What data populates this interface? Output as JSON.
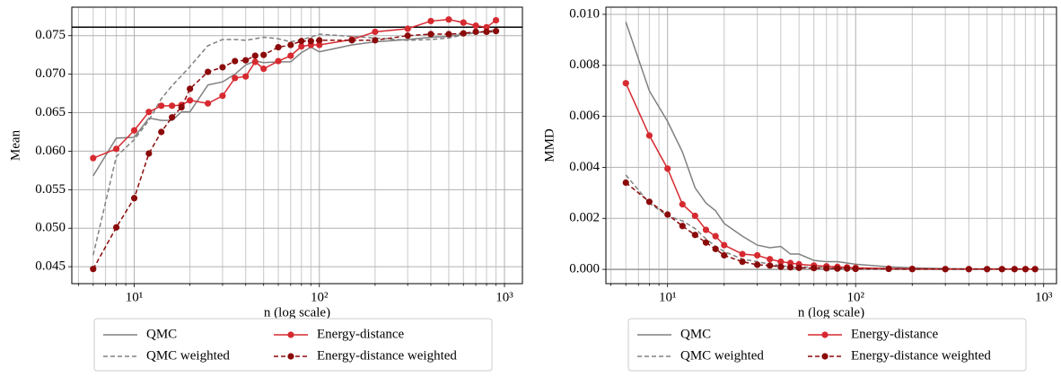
{
  "chart_data": [
    {
      "type": "line",
      "xlabel": "n (log scale)",
      "ylabel": "Mean",
      "xscale": "log",
      "grid": true,
      "legend": "below",
      "x": [
        6,
        8,
        10,
        12,
        14,
        16,
        18,
        20,
        25,
        30,
        35,
        40,
        45,
        50,
        60,
        70,
        80,
        90,
        100,
        150,
        200,
        300,
        400,
        500,
        600,
        700,
        800,
        900
      ],
      "xlim": [
        4.6,
        1250
      ],
      "xticks": [
        {
          "value": 10,
          "label": "10¹"
        },
        {
          "value": 100,
          "label": "10²"
        },
        {
          "value": 1000,
          "label": "10³"
        }
      ],
      "xminor": [
        5,
        6,
        7,
        8,
        9,
        20,
        30,
        40,
        50,
        60,
        70,
        80,
        90,
        200,
        300,
        400,
        500,
        600,
        700,
        800,
        900
      ],
      "ylim": [
        0.0428,
        0.0787
      ],
      "yticks": [
        0.045,
        {
          "value": 0.05,
          "label": "0.050"
        },
        0.055,
        {
          "value": 0.06,
          "label": "0.060"
        },
        0.065,
        {
          "value": 0.07,
          "label": "0.070"
        },
        0.075
      ],
      "hline": 0.0761,
      "hline_color": "#000000",
      "series": [
        {
          "name": "QMC",
          "color": "#808080",
          "linestyle": "solid",
          "marker": "none",
          "values": [
            0.0568,
            0.0617,
            0.0618,
            0.0643,
            0.064,
            0.064,
            0.0651,
            0.0651,
            0.0686,
            0.069,
            0.07,
            0.0712,
            0.0717,
            0.0715,
            0.0716,
            0.0716,
            0.0728,
            0.0735,
            0.0729,
            0.0738,
            0.0742,
            0.0745,
            0.0748,
            0.0749,
            0.0752,
            0.0754,
            0.0755,
            0.0755
          ]
        },
        {
          "name": "QMC weighted",
          "color": "#808080",
          "linestyle": "dashed",
          "marker": "none",
          "values": [
            0.0465,
            0.0593,
            0.0615,
            0.064,
            0.0668,
            0.0685,
            0.0698,
            0.071,
            0.0737,
            0.0745,
            0.0745,
            0.0744,
            0.0746,
            0.0748,
            0.0746,
            0.0742,
            0.0745,
            0.0748,
            0.0752,
            0.0749,
            0.0747,
            0.0744,
            0.0745,
            0.0747,
            0.0751,
            0.0754,
            0.0756,
            0.0757
          ]
        },
        {
          "name": "Energy-distance",
          "color": "#d62a30",
          "linestyle": "solid",
          "marker": "circle",
          "values": [
            0.0591,
            0.0603,
            0.0627,
            0.0651,
            0.0659,
            0.0659,
            0.066,
            0.0666,
            0.0662,
            0.0672,
            0.0695,
            0.0697,
            0.0716,
            0.0707,
            0.0717,
            0.0724,
            0.0736,
            0.0738,
            0.0738,
            0.0745,
            0.0755,
            0.0759,
            0.0769,
            0.0771,
            0.0767,
            0.0763,
            0.0761,
            0.077
          ]
        },
        {
          "name": "Energy-distance weighted",
          "color": "#8b0a0a",
          "linestyle": "dashed",
          "marker": "circle",
          "values": [
            0.0447,
            0.0501,
            0.0539,
            0.0597,
            0.0625,
            0.0644,
            0.0657,
            0.0681,
            0.0703,
            0.0709,
            0.0717,
            0.0718,
            0.0724,
            0.0725,
            0.0735,
            0.0738,
            0.0743,
            0.0743,
            0.0744,
            0.0744,
            0.0744,
            0.075,
            0.0752,
            0.0752,
            0.0753,
            0.0755,
            0.0755,
            0.0756
          ]
        }
      ]
    },
    {
      "type": "line",
      "xlabel": "n (log scale)",
      "ylabel": "MMD",
      "xscale": "log",
      "grid": true,
      "legend": "below",
      "x": [
        6,
        8,
        10,
        12,
        14,
        16,
        18,
        20,
        25,
        30,
        35,
        40,
        45,
        50,
        60,
        70,
        80,
        90,
        100,
        150,
        200,
        300,
        400,
        500,
        600,
        700,
        800,
        900
      ],
      "xlim": [
        4.7,
        1170
      ],
      "xticks": [
        {
          "value": 10,
          "label": "10¹"
        },
        {
          "value": 100,
          "label": "10²"
        },
        {
          "value": 1000,
          "label": "10³"
        }
      ],
      "xminor": [
        5,
        6,
        7,
        8,
        9,
        20,
        30,
        40,
        50,
        60,
        70,
        80,
        90,
        200,
        300,
        400,
        500,
        600,
        700,
        800,
        900
      ],
      "ylim": [
        -0.00056,
        0.01028
      ],
      "yticks": [
        {
          "value": 0,
          "label": "0.000"
        },
        0.002,
        0.004,
        0.006,
        0.008,
        {
          "value": 0.01,
          "label": "0.010"
        }
      ],
      "hline": 0,
      "hline_color": "#999999",
      "series": [
        {
          "name": "QMC",
          "color": "#808080",
          "linestyle": "solid",
          "marker": "none",
          "values": [
            0.0097,
            0.007,
            0.0058,
            0.0046,
            0.0032,
            0.0026,
            0.0023,
            0.0018,
            0.0013,
            0.00095,
            0.00085,
            0.0009,
            0.0006,
            0.0006,
            0.00035,
            0.0003,
            0.0003,
            0.00025,
            0.0002,
            0.0001,
            6e-05,
            3e-05,
            2e-05,
            2e-05,
            2e-05,
            1e-05,
            1e-05,
            1e-05
          ]
        },
        {
          "name": "QMC weighted",
          "color": "#808080",
          "linestyle": "dashed",
          "marker": "none",
          "values": [
            0.0037,
            0.0026,
            0.0021,
            0.0019,
            0.0016,
            0.0012,
            0.0009,
            0.0007,
            0.0004,
            0.0003,
            0.0002,
            0.00015,
            0.0001,
            0.0001,
            8e-05,
            7e-05,
            6e-05,
            5e-05,
            4e-05,
            3e-05,
            2e-05,
            1e-05,
            1e-05,
            1e-05,
            1e-05,
            1e-05,
            1e-05,
            1e-05
          ]
        },
        {
          "name": "Energy-distance",
          "color": "#d62a30",
          "linestyle": "solid",
          "marker": "circle",
          "values": [
            0.0073,
            0.00525,
            0.00395,
            0.00255,
            0.0021,
            0.00155,
            0.0013,
            0.00095,
            0.0006,
            0.00055,
            0.0004,
            0.0003,
            0.00025,
            0.0002,
            0.00015,
            0.00012,
            0.0001,
            8e-05,
            6e-05,
            3e-05,
            2e-05,
            1e-05,
            1e-05,
            1e-05,
            1e-05,
            1e-05,
            1e-05,
            1e-05
          ]
        },
        {
          "name": "Energy-distance weighted",
          "color": "#8b0a0a",
          "linestyle": "dashed",
          "marker": "circle",
          "values": [
            0.0034,
            0.00265,
            0.00215,
            0.0017,
            0.00135,
            0.00105,
            0.0008,
            0.00055,
            0.0003,
            0.00018,
            0.00015,
            0.0001,
            8e-05,
            6e-05,
            5e-05,
            4e-05,
            3e-05,
            3e-05,
            2e-05,
            2e-05,
            1e-05,
            1e-05,
            1e-05,
            1e-05,
            1e-05,
            1e-05,
            1e-05,
            1e-05
          ]
        }
      ]
    }
  ]
}
